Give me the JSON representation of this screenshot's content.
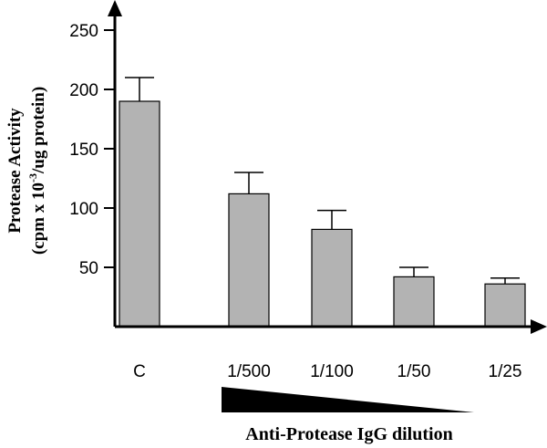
{
  "chart_data": {
    "type": "bar",
    "categories": [
      "C",
      "1/500",
      "1/100",
      "1/50",
      "1/25"
    ],
    "values": [
      190,
      112,
      82,
      42,
      36
    ],
    "errors": [
      20,
      18,
      16,
      8,
      5
    ],
    "yticks": [
      50,
      100,
      150,
      200,
      250
    ],
    "ylim": [
      0,
      270
    ],
    "ylabel_line1": "Protease Activity",
    "ylabel_line2_prefix": "(cpm x 10",
    "ylabel_line2_sup": "-3",
    "ylabel_line2_suffix": "/ug protein)",
    "xlabel": "Anti-Protease IgG dilution",
    "bar_color": "#b3b3b3",
    "legend": "none",
    "grid": false
  }
}
